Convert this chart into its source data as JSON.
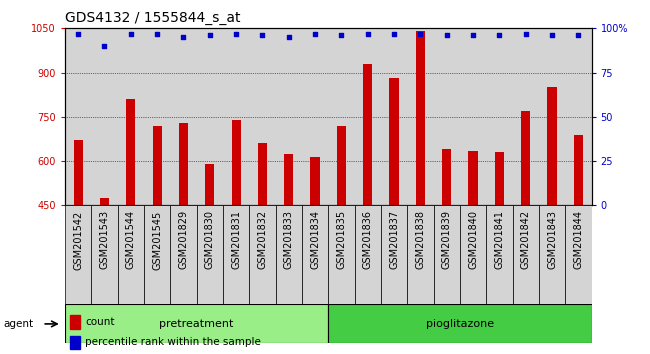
{
  "title": "GDS4132 / 1555844_s_at",
  "samples": [
    "GSM201542",
    "GSM201543",
    "GSM201544",
    "GSM201545",
    "GSM201829",
    "GSM201830",
    "GSM201831",
    "GSM201832",
    "GSM201833",
    "GSM201834",
    "GSM201835",
    "GSM201836",
    "GSM201837",
    "GSM201838",
    "GSM201839",
    "GSM201840",
    "GSM201841",
    "GSM201842",
    "GSM201843",
    "GSM201844"
  ],
  "counts": [
    670,
    475,
    810,
    720,
    730,
    590,
    740,
    660,
    625,
    615,
    720,
    930,
    880,
    1040,
    640,
    635,
    630,
    770,
    850,
    690
  ],
  "percentiles": [
    97,
    90,
    97,
    97,
    95,
    96,
    97,
    96,
    95,
    97,
    96,
    97,
    97,
    97,
    96,
    96,
    96,
    97,
    96,
    96
  ],
  "pretreatment_count": 10,
  "pioglitazone_count": 10,
  "ylim_left": [
    450,
    1050
  ],
  "ylim_right": [
    0,
    100
  ],
  "yticks_left": [
    450,
    600,
    750,
    900,
    1050
  ],
  "yticks_right": [
    0,
    25,
    50,
    75,
    100
  ],
  "ytick_labels_right": [
    "0",
    "25",
    "50",
    "75",
    "100%"
  ],
  "bar_color": "#cc0000",
  "dot_color": "#0000cc",
  "pretreatment_color": "#99ee88",
  "pioglitazone_color": "#44cc44",
  "agent_label": "agent",
  "pretreatment_label": "pretreatment",
  "pioglitazone_label": "pioglitazone",
  "legend_count_label": "count",
  "legend_pct_label": "percentile rank within the sample",
  "title_fontsize": 10,
  "tick_fontsize": 7,
  "axis_color_left": "#cc0000",
  "axis_color_right": "#0000cc",
  "grid_color": "#000000",
  "background_color": "#d4d4d4",
  "xlabel_bg": "#c8c8c8"
}
